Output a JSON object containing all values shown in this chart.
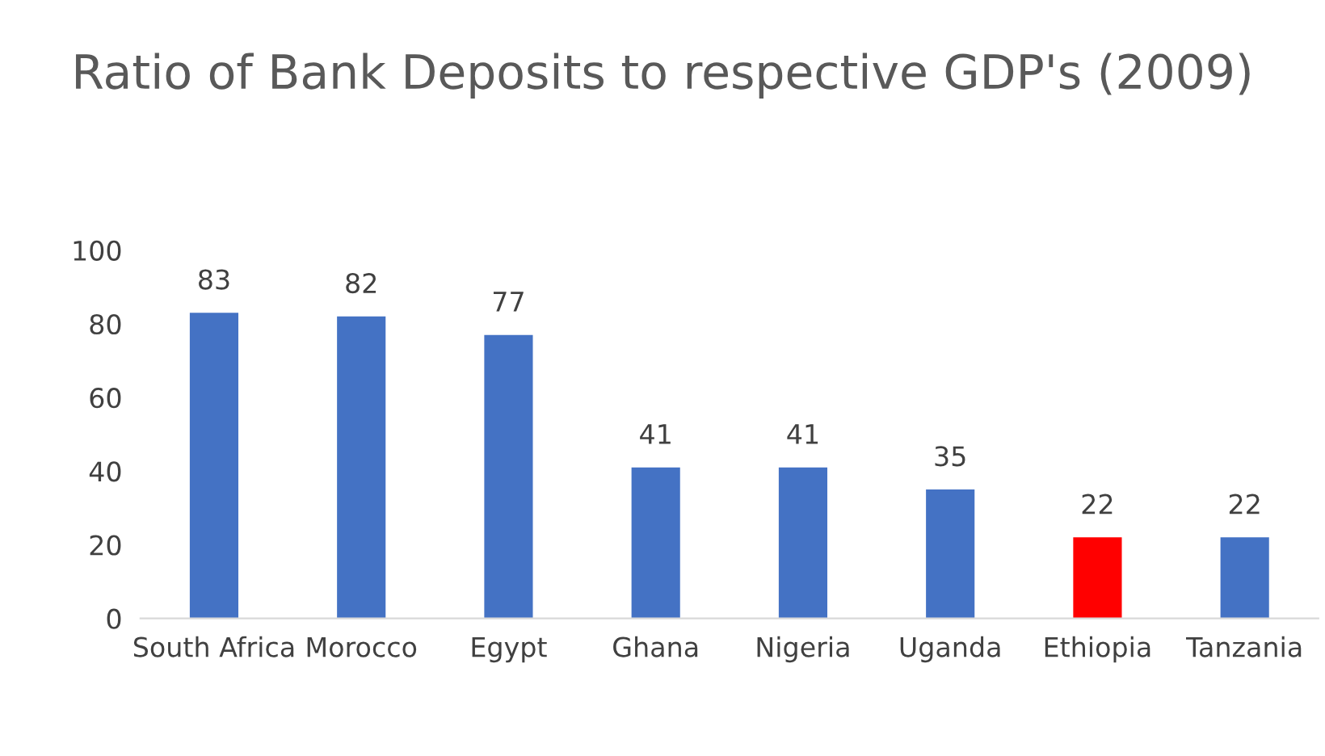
{
  "chart_data": {
    "type": "bar",
    "title": "Ratio of Bank Deposits to respective GDP's (2009)",
    "categories": [
      "South Africa",
      "Morocco",
      "Egypt",
      "Ghana",
      "Nigeria",
      "Uganda",
      "Ethiopia",
      "Tanzania"
    ],
    "values": [
      83,
      82,
      77,
      41,
      41,
      35,
      22,
      22
    ],
    "colors": [
      "#4472c4",
      "#4472c4",
      "#4472c4",
      "#4472c4",
      "#4472c4",
      "#4472c4",
      "#ff0000",
      "#4472c4"
    ],
    "ylim": [
      0,
      100
    ],
    "yticks": [
      0,
      20,
      40,
      60,
      80,
      100
    ],
    "grid": false,
    "data_labels": true
  }
}
